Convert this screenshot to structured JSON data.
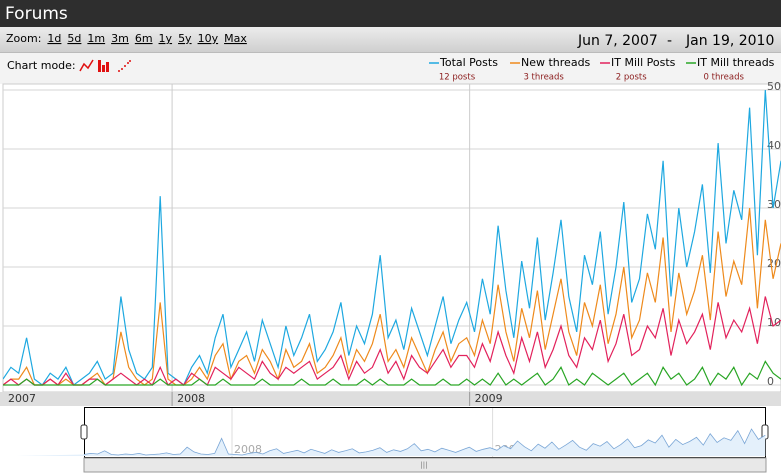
{
  "chart_data": {
    "type": "line",
    "title": "Forums",
    "zoom": {
      "label": "Zoom:",
      "options": [
        "1d",
        "5d",
        "1m",
        "3m",
        "6m",
        "1y",
        "5y",
        "10y",
        "Max"
      ]
    },
    "date_range": {
      "start": "Jun 7, 2007",
      "separator": "-",
      "end": "Jan 19, 2010"
    },
    "chart_mode_label": "Chart mode:",
    "ylim": [
      0,
      50
    ],
    "yticks": [
      0,
      10,
      20,
      30,
      40,
      50
    ],
    "xticks": [
      2007,
      2008,
      2009
    ],
    "grid": true,
    "series": [
      {
        "name": "Total Posts",
        "color": "#1ea8e0",
        "legend_value": "12 posts",
        "values": [
          1,
          3,
          2,
          8,
          1,
          0,
          2,
          1,
          3,
          0,
          1,
          2,
          4,
          1,
          2,
          15,
          6,
          2,
          1,
          3,
          32,
          2,
          1,
          0,
          3,
          5,
          2,
          8,
          12,
          3,
          6,
          9,
          4,
          11,
          7,
          3,
          10,
          5,
          8,
          12,
          4,
          6,
          9,
          14,
          5,
          10,
          7,
          12,
          22,
          8,
          11,
          6,
          13,
          9,
          5,
          10,
          15,
          7,
          11,
          14,
          9,
          18,
          12,
          27,
          16,
          8,
          21,
          13,
          25,
          11,
          19,
          28,
          15,
          9,
          22,
          17,
          26,
          12,
          20,
          31,
          14,
          18,
          29,
          23,
          38,
          15,
          30,
          20,
          26,
          34,
          19,
          41,
          24,
          33,
          28,
          47,
          22,
          50,
          30,
          38
        ]
      },
      {
        "name": "New threads",
        "color": "#ee8a1c",
        "legend_value": "3 threads",
        "values": [
          0,
          1,
          1,
          3,
          0,
          0,
          1,
          0,
          1,
          0,
          0,
          1,
          2,
          0,
          1,
          9,
          3,
          1,
          0,
          1,
          14,
          1,
          0,
          0,
          1,
          3,
          1,
          5,
          7,
          1,
          4,
          5,
          2,
          6,
          4,
          1,
          6,
          3,
          4,
          7,
          2,
          3,
          5,
          8,
          2,
          6,
          4,
          7,
          12,
          4,
          6,
          3,
          8,
          5,
          2,
          6,
          9,
          4,
          7,
          8,
          5,
          11,
          7,
          17,
          9,
          4,
          13,
          8,
          16,
          6,
          12,
          18,
          9,
          5,
          14,
          10,
          17,
          7,
          12,
          20,
          8,
          11,
          19,
          14,
          25,
          9,
          19,
          12,
          16,
          22,
          11,
          26,
          15,
          21,
          17,
          30,
          13,
          28,
          18,
          24
        ]
      },
      {
        "name": "IT Mill Posts",
        "color": "#e2225c",
        "legend_value": "2 posts",
        "values": [
          0,
          1,
          0,
          1,
          0,
          0,
          1,
          0,
          2,
          0,
          0,
          1,
          1,
          0,
          1,
          2,
          1,
          0,
          1,
          0,
          3,
          0,
          1,
          0,
          2,
          1,
          0,
          3,
          2,
          1,
          3,
          2,
          1,
          4,
          2,
          1,
          3,
          2,
          3,
          4,
          1,
          2,
          3,
          5,
          1,
          4,
          2,
          3,
          6,
          2,
          4,
          1,
          5,
          3,
          2,
          4,
          6,
          3,
          5,
          5,
          3,
          7,
          4,
          9,
          5,
          2,
          8,
          4,
          9,
          3,
          6,
          10,
          5,
          3,
          8,
          6,
          11,
          4,
          7,
          12,
          5,
          6,
          10,
          8,
          13,
          5,
          11,
          7,
          9,
          12,
          6,
          14,
          8,
          11,
          9,
          13,
          7,
          15,
          10,
          11
        ]
      },
      {
        "name": "IT Mill threads",
        "color": "#2aa626",
        "legend_value": "0 threads",
        "values": [
          0,
          0,
          0,
          1,
          0,
          0,
          0,
          0,
          0,
          0,
          0,
          0,
          1,
          0,
          0,
          0,
          0,
          0,
          0,
          0,
          1,
          0,
          0,
          0,
          0,
          1,
          0,
          0,
          1,
          0,
          0,
          0,
          0,
          1,
          0,
          0,
          0,
          0,
          1,
          0,
          0,
          0,
          1,
          0,
          0,
          0,
          1,
          0,
          1,
          0,
          0,
          0,
          1,
          0,
          0,
          0,
          1,
          0,
          0,
          1,
          0,
          1,
          0,
          2,
          0,
          1,
          0,
          1,
          2,
          0,
          1,
          3,
          0,
          1,
          0,
          2,
          1,
          0,
          1,
          2,
          0,
          1,
          2,
          0,
          3,
          1,
          2,
          0,
          1,
          3,
          0,
          2,
          1,
          3,
          0,
          2,
          1,
          4,
          2,
          1
        ]
      }
    ]
  }
}
